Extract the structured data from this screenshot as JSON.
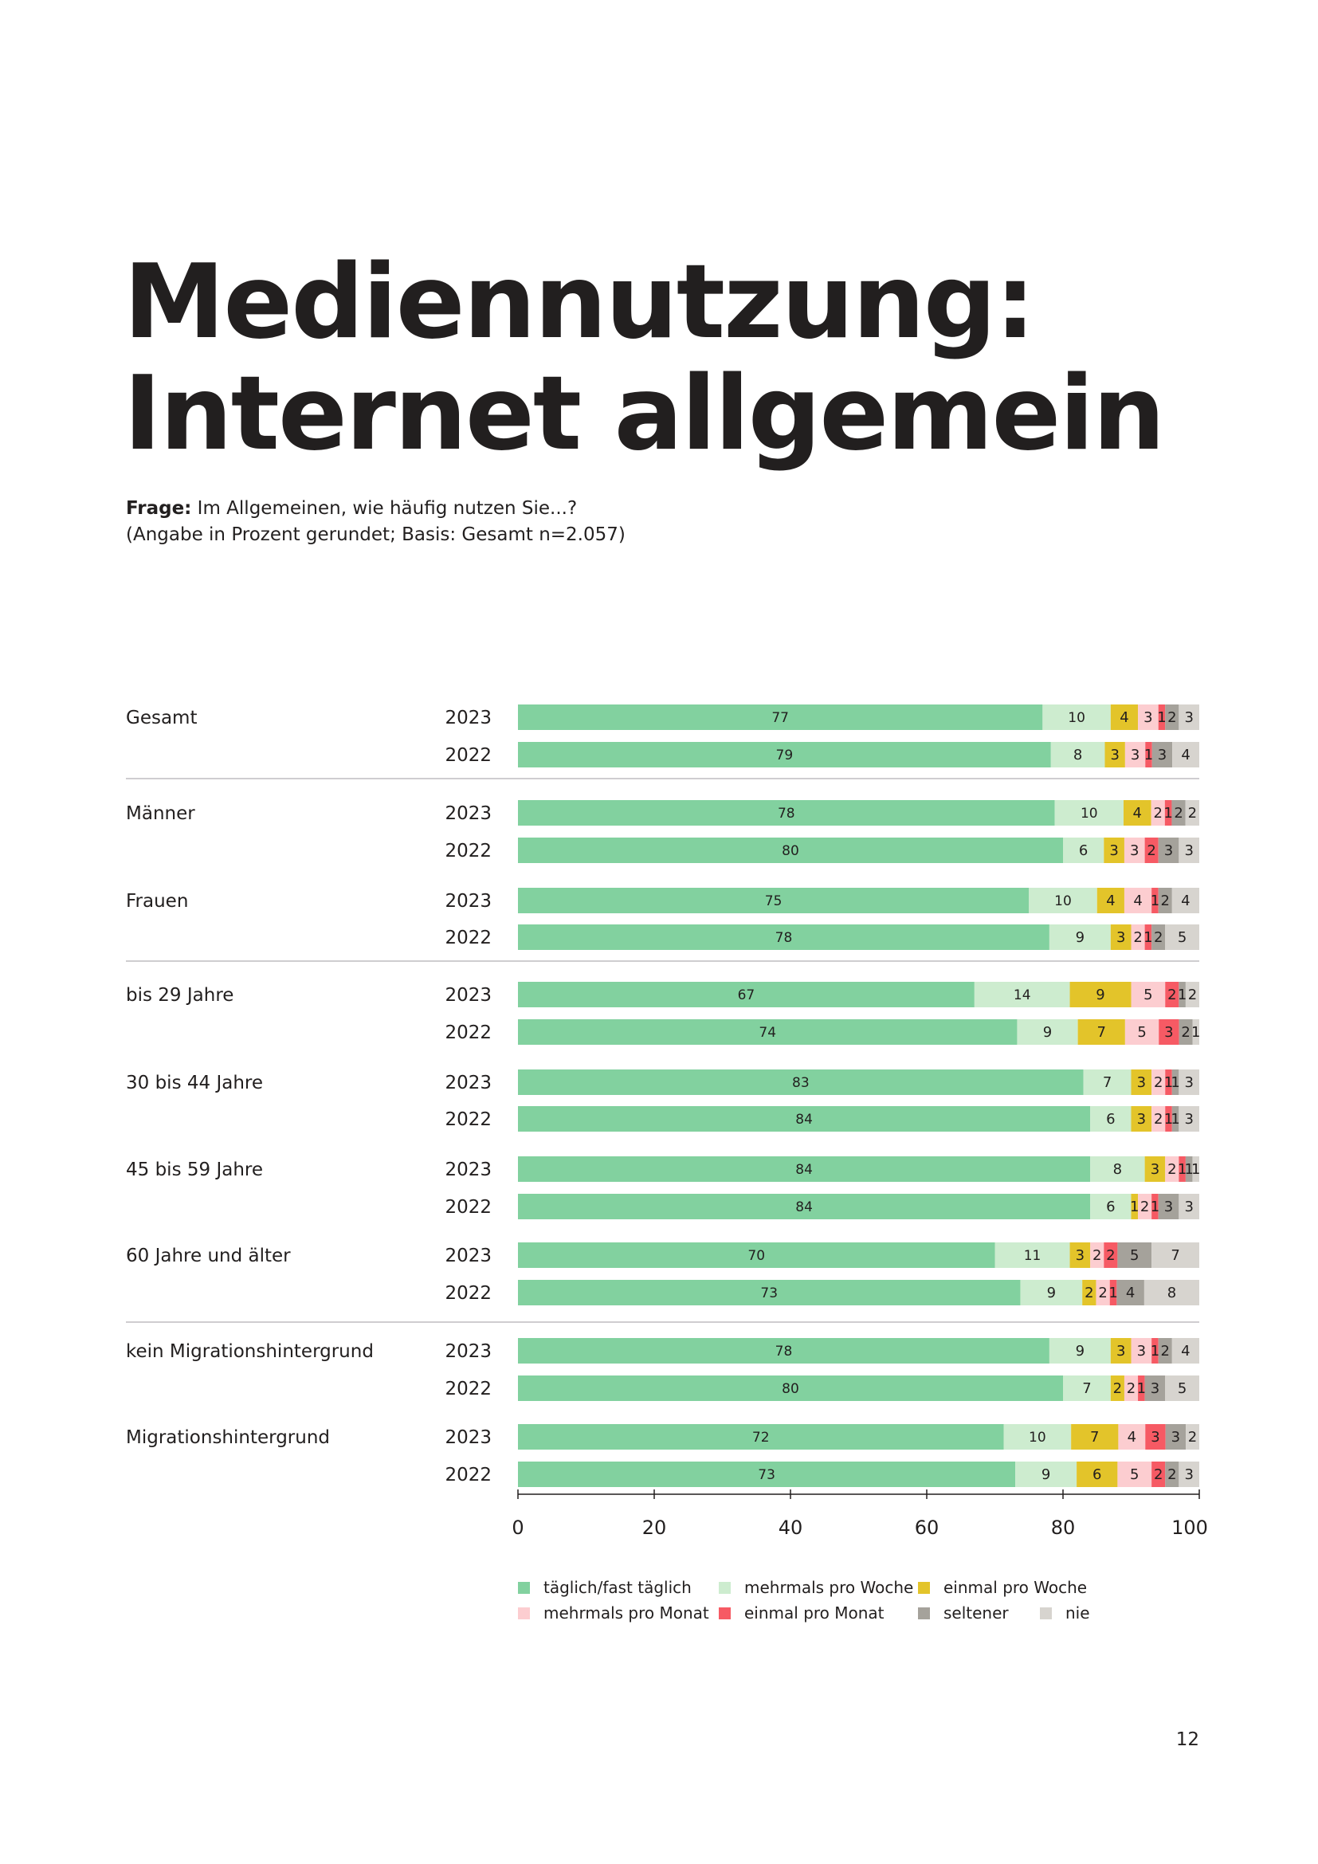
{
  "title_line1": "Mediennutzung:",
  "title_line2": "Internet allgemein",
  "question_label": "Frage:",
  "question_text": " Im Allgemeinen, wie häufig nutzen Sie...?",
  "question_note": "(Angabe in Prozent gerundet; Basis: Gesamt n=2.057)",
  "page_number": "12",
  "chart_data": {
    "type": "bar",
    "orientation": "horizontal-stacked",
    "xlim": [
      0,
      100
    ],
    "xticks": [
      "0",
      "20",
      "40",
      "60",
      "80",
      "100"
    ],
    "legend_position": "bottom",
    "series": [
      {
        "name": "täglich/fast täglich",
        "color": "#82d19f"
      },
      {
        "name": "mehrmals pro Woche",
        "color": "#cdeccf"
      },
      {
        "name": "einmal pro Woche",
        "color": "#e3c42a"
      },
      {
        "name": "mehrmals pro Monat",
        "color": "#fccdd0"
      },
      {
        "name": "einmal pro Monat",
        "color": "#f65a64"
      },
      {
        "name": "seltener",
        "color": "#a5a29b"
      },
      {
        "name": "nie",
        "color": "#d7d4cf"
      }
    ],
    "legend_order": [
      0,
      1,
      2,
      3,
      4,
      5,
      6
    ],
    "groups": [
      {
        "label": "Gesamt",
        "rows": [
          {
            "year": "2023",
            "values": [
              77,
              10,
              4,
              3,
              1,
              2,
              3
            ]
          },
          {
            "year": "2022",
            "values": [
              79,
              8,
              3,
              3,
              1,
              3,
              4
            ]
          }
        ],
        "separator_after": true
      },
      {
        "label": "Männer",
        "rows": [
          {
            "year": "2023",
            "values": [
              78,
              10,
              4,
              2,
              1,
              2,
              2
            ]
          },
          {
            "year": "2022",
            "values": [
              80,
              6,
              3,
              3,
              2,
              3,
              3
            ]
          }
        ]
      },
      {
        "label": "Frauen",
        "rows": [
          {
            "year": "2023",
            "values": [
              75,
              10,
              4,
              4,
              1,
              2,
              4
            ]
          },
          {
            "year": "2022",
            "values": [
              78,
              9,
              3,
              2,
              1,
              2,
              5
            ]
          }
        ],
        "separator_after": true
      },
      {
        "label": "bis 29 Jahre",
        "rows": [
          {
            "year": "2023",
            "values": [
              67,
              14,
              9,
              5,
              2,
              1,
              2
            ]
          },
          {
            "year": "2022",
            "values": [
              74,
              9,
              7,
              5,
              3,
              2,
              1
            ]
          }
        ]
      },
      {
        "label": "30 bis 44 Jahre",
        "rows": [
          {
            "year": "2023",
            "values": [
              83,
              7,
              3,
              2,
              1,
              1,
              3
            ]
          },
          {
            "year": "2022",
            "values": [
              84,
              6,
              3,
              2,
              1,
              1,
              3
            ]
          }
        ]
      },
      {
        "label": "45 bis 59 Jahre",
        "rows": [
          {
            "year": "2023",
            "values": [
              84,
              8,
              3,
              2,
              1,
              1,
              1
            ]
          },
          {
            "year": "2022",
            "values": [
              84,
              6,
              1,
              2,
              1,
              3,
              3
            ]
          }
        ]
      },
      {
        "label": "60 Jahre und älter",
        "rows": [
          {
            "year": "2023",
            "values": [
              70,
              11,
              3,
              2,
              2,
              5,
              7
            ]
          },
          {
            "year": "2022",
            "values": [
              73,
              9,
              2,
              2,
              1,
              4,
              8
            ]
          }
        ],
        "separator_after": true
      },
      {
        "label": "kein Migrationshintergrund",
        "rows": [
          {
            "year": "2023",
            "values": [
              78,
              9,
              3,
              3,
              1,
              2,
              4
            ]
          },
          {
            "year": "2022",
            "values": [
              80,
              7,
              2,
              2,
              1,
              3,
              5
            ]
          }
        ]
      },
      {
        "label": "Migrationshintergrund",
        "rows": [
          {
            "year": "2023",
            "values": [
              72,
              10,
              7,
              4,
              3,
              3,
              2
            ]
          },
          {
            "year": "2022",
            "values": [
              73,
              9,
              6,
              5,
              2,
              2,
              3
            ]
          }
        ]
      }
    ]
  }
}
